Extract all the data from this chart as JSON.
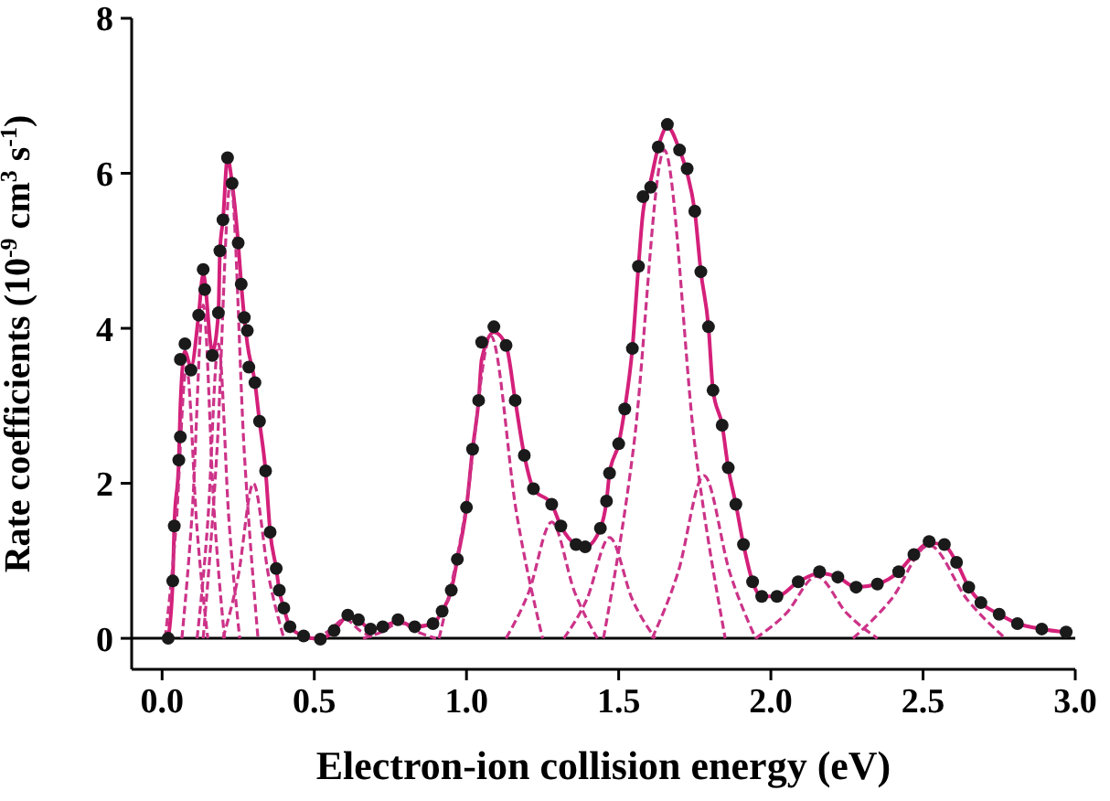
{
  "chart_data": {
    "type": "line",
    "xlabel": "Electron-ion collision energy (eV)",
    "ylabel": "Rate coefficients (10$^{-9}$ cm$^{3}$ s$^{-1}$)",
    "xlim": [
      -0.1,
      3.0
    ],
    "xticks": [
      {
        "value": 0,
        "label": "0.0"
      },
      {
        "value": 0.5,
        "label": "0.5"
      },
      {
        "value": 1,
        "label": "1.0"
      },
      {
        "value": 1.5,
        "label": "1.5"
      },
      {
        "value": 2,
        "label": "2.0"
      },
      {
        "value": 2.5,
        "label": "2.5"
      },
      {
        "value": 3,
        "label": "3.0"
      }
    ],
    "ylim": [
      -0.4,
      8
    ],
    "yticks": [
      0,
      2,
      4,
      6,
      8
    ],
    "grid": false,
    "legend": false,
    "ref_lines": [
      {
        "axis": "y",
        "value": 0,
        "color": "#000000"
      }
    ],
    "series": [
      {
        "type": "scatter",
        "color": "#1a1a1a",
        "marker": "circle",
        "x": [
          0.02,
          0.035,
          0.04,
          0.055,
          0.06,
          0.06,
          0.075,
          0.095,
          0.12,
          0.135,
          0.14,
          0.165,
          0.185,
          0.19,
          0.2,
          0.215,
          0.23,
          0.25,
          0.26,
          0.27,
          0.28,
          0.285,
          0.305,
          0.32,
          0.34,
          0.355,
          0.375,
          0.385,
          0.4,
          0.42,
          0.465,
          0.52,
          0.565,
          0.61,
          0.645,
          0.685,
          0.725,
          0.775,
          0.83,
          0.89,
          0.92,
          0.95,
          0.97,
          1.0,
          1.02,
          1.04,
          1.05,
          1.09,
          1.13,
          1.16,
          1.19,
          1.22,
          1.28,
          1.31,
          1.36,
          1.39,
          1.44,
          1.46,
          1.47,
          1.5,
          1.52,
          1.545,
          1.565,
          1.58,
          1.605,
          1.63,
          1.66,
          1.7,
          1.725,
          1.75,
          1.77,
          1.795,
          1.81,
          1.84,
          1.86,
          1.885,
          1.91,
          1.94,
          1.97,
          2.02,
          2.09,
          2.16,
          2.22,
          2.28,
          2.35,
          2.42,
          2.47,
          2.52,
          2.57,
          2.61,
          2.65,
          2.69,
          2.75,
          2.81,
          2.89,
          2.97
        ],
        "values": [
          0,
          0.74,
          1.45,
          2.3,
          2.6,
          3.6,
          3.8,
          3.46,
          4.17,
          4.76,
          4.5,
          3.65,
          4.2,
          5.0,
          5.4,
          6.2,
          5.87,
          5.1,
          4.57,
          4.14,
          3.97,
          3.5,
          3.3,
          2.8,
          2.16,
          1.37,
          0.9,
          0.62,
          0.39,
          0.15,
          0.03,
          -0.01,
          0.1,
          0.3,
          0.24,
          0.12,
          0.15,
          0.24,
          0.15,
          0.19,
          0.35,
          0.62,
          1.02,
          1.69,
          2.44,
          3.07,
          3.82,
          4.02,
          3.78,
          3.07,
          2.36,
          1.93,
          1.73,
          1.45,
          1.21,
          1.18,
          1.42,
          1.77,
          2.13,
          2.51,
          2.96,
          3.74,
          4.8,
          5.7,
          5.82,
          6.34,
          6.63,
          6.3,
          6.06,
          5.51,
          4.73,
          4.02,
          3.2,
          2.75,
          2.2,
          1.73,
          1.21,
          0.73,
          0.54,
          0.54,
          0.73,
          0.86,
          0.79,
          0.66,
          0.7,
          0.86,
          1.08,
          1.25,
          1.21,
          0.98,
          0.66,
          0.46,
          0.31,
          0.19,
          0.12,
          0.08
        ]
      },
      {
        "color": "#d4207a",
        "line_style": "solid",
        "marker": "none",
        "x": [
          0.02,
          0.035,
          0.04,
          0.055,
          0.06,
          0.075,
          0.095,
          0.12,
          0.135,
          0.165,
          0.185,
          0.19,
          0.2,
          0.215,
          0.23,
          0.25,
          0.26,
          0.27,
          0.28,
          0.305,
          0.32,
          0.34,
          0.355,
          0.375,
          0.385,
          0.4,
          0.42,
          0.465,
          0.52,
          0.565,
          0.61,
          0.645,
          0.685,
          0.725,
          0.775,
          0.83,
          0.89,
          0.92,
          0.95,
          0.97,
          1.0,
          1.02,
          1.04,
          1.05,
          1.09,
          1.13,
          1.16,
          1.19,
          1.22,
          1.28,
          1.31,
          1.36,
          1.39,
          1.44,
          1.46,
          1.47,
          1.5,
          1.52,
          1.545,
          1.565,
          1.58,
          1.605,
          1.63,
          1.66,
          1.7,
          1.725,
          1.75,
          1.77,
          1.795,
          1.81,
          1.84,
          1.86,
          1.885,
          1.91,
          1.94,
          1.97,
          2.02,
          2.09,
          2.16,
          2.22,
          2.28,
          2.35,
          2.42,
          2.47,
          2.52,
          2.57,
          2.61,
          2.65,
          2.69,
          2.75,
          2.81,
          2.89,
          2.97
        ],
        "values": [
          0,
          0.74,
          1.45,
          2.3,
          3.0,
          3.7,
          3.5,
          4.17,
          4.7,
          3.7,
          4.2,
          5.0,
          5.4,
          6.2,
          5.87,
          5.1,
          4.57,
          4.14,
          3.8,
          3.3,
          2.8,
          2.16,
          1.37,
          0.9,
          0.62,
          0.39,
          0.15,
          0.03,
          -0.01,
          0.1,
          0.28,
          0.24,
          0.12,
          0.15,
          0.22,
          0.15,
          0.19,
          0.35,
          0.62,
          1.02,
          1.69,
          2.44,
          3.07,
          3.6,
          3.95,
          3.78,
          3.07,
          2.36,
          1.93,
          1.73,
          1.45,
          1.21,
          1.18,
          1.42,
          1.77,
          2.13,
          2.51,
          2.96,
          3.74,
          4.8,
          5.5,
          5.9,
          6.34,
          6.6,
          6.3,
          6.0,
          5.51,
          4.73,
          4.02,
          3.2,
          2.75,
          2.2,
          1.73,
          1.21,
          0.73,
          0.54,
          0.54,
          0.73,
          0.84,
          0.79,
          0.66,
          0.7,
          0.86,
          1.08,
          1.23,
          1.2,
          0.98,
          0.66,
          0.46,
          0.31,
          0.19,
          0.12,
          0.08
        ]
      },
      {
        "type": "line",
        "color": "#cc3388",
        "line_style": "dashed",
        "marker": "none",
        "x": [
          0.01,
          0.045,
          0.08,
          0.115,
          0.15
        ],
        "values": [
          0,
          1.4,
          3.5,
          1.4,
          0
        ]
      },
      {
        "type": "line",
        "color": "#cc3388",
        "line_style": "dashed",
        "marker": "none",
        "x": [
          0.065,
          0.1,
          0.135,
          0.17,
          0.205
        ],
        "values": [
          0,
          1.7,
          4.3,
          1.7,
          0
        ]
      },
      {
        "type": "line",
        "color": "#cc3388",
        "line_style": "dashed",
        "marker": "none",
        "x": [
          0.115,
          0.15,
          0.185,
          0.22,
          0.255
        ],
        "values": [
          0,
          1.5,
          3.8,
          1.5,
          0
        ]
      },
      {
        "type": "line",
        "color": "#cc3388",
        "line_style": "dashed",
        "marker": "none",
        "x": [
          0.135,
          0.18,
          0.225,
          0.27,
          0.315
        ],
        "values": [
          0,
          2.4,
          5.9,
          2.4,
          0
        ]
      },
      {
        "type": "line",
        "color": "#cc3388",
        "line_style": "dashed",
        "marker": "none",
        "x": [
          0.2,
          0.25,
          0.3,
          0.35,
          0.4
        ],
        "values": [
          0,
          0.8,
          2.0,
          0.8,
          0
        ]
      },
      {
        "type": "line",
        "color": "#cc3388",
        "line_style": "dashed",
        "marker": "none",
        "x": [
          0.5,
          0.55,
          0.6,
          0.65,
          0.7
        ],
        "values": [
          0,
          0.1,
          0.25,
          0.1,
          0
        ]
      },
      {
        "type": "line",
        "color": "#cc3388",
        "line_style": "dashed",
        "marker": "none",
        "x": [
          0.66,
          0.72,
          0.78,
          0.84,
          0.9
        ],
        "values": [
          0,
          0.08,
          0.2,
          0.08,
          0
        ]
      },
      {
        "type": "line",
        "color": "#cc3388",
        "line_style": "dashed",
        "marker": "none",
        "x": [
          0.91,
          0.995,
          1.08,
          1.165,
          1.25
        ],
        "values": [
          0,
          1.6,
          3.9,
          1.6,
          0
        ]
      },
      {
        "type": "line",
        "color": "#cc3388",
        "line_style": "dashed",
        "marker": "none",
        "x": [
          1.13,
          1.205,
          1.28,
          1.355,
          1.43
        ],
        "values": [
          0,
          0.6,
          1.5,
          0.6,
          0
        ]
      },
      {
        "type": "line",
        "color": "#cc3388",
        "line_style": "dashed",
        "marker": "none",
        "x": [
          1.32,
          1.395,
          1.47,
          1.545,
          1.62
        ],
        "values": [
          0,
          0.5,
          1.3,
          0.5,
          0
        ]
      },
      {
        "type": "line",
        "color": "#cc3388",
        "line_style": "dashed",
        "marker": "none",
        "x": [
          1.45,
          1.55,
          1.65,
          1.75,
          1.85
        ],
        "values": [
          0,
          2.5,
          6.3,
          2.5,
          0
        ]
      },
      {
        "type": "line",
        "color": "#cc3388",
        "line_style": "dashed",
        "marker": "none",
        "x": [
          1.61,
          1.695,
          1.78,
          1.865,
          1.95
        ],
        "values": [
          0,
          0.85,
          2.1,
          0.85,
          0
        ]
      },
      {
        "type": "line",
        "color": "#cc3388",
        "line_style": "dashed",
        "marker": "none",
        "x": [
          1.95,
          2.05,
          2.15,
          2.25,
          2.35
        ],
        "values": [
          0,
          0.32,
          0.8,
          0.32,
          0
        ]
      },
      {
        "type": "line",
        "color": "#cc3388",
        "line_style": "dashed",
        "marker": "none",
        "x": [
          2.27,
          2.395,
          2.52,
          2.645,
          2.77
        ],
        "values": [
          0,
          0.5,
          1.2,
          0.5,
          0
        ]
      }
    ]
  }
}
